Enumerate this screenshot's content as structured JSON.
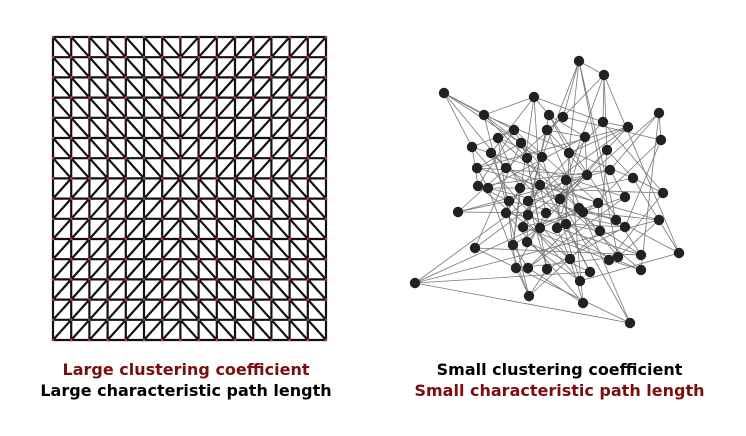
{
  "figure": {
    "panels": [
      {
        "id": "regular-lattice",
        "caption_line_1": "Large clustering coefficient",
        "caption_line_2": "Large characteristic path length"
      },
      {
        "id": "random-network",
        "caption_line_1": "Small clustering coefficient",
        "caption_line_2": "Small characteristic path length"
      }
    ]
  },
  "colors": {
    "highlight": "#7a0e0e",
    "text": "#000000",
    "lattice_edge": "#111111",
    "lattice_node": "#d23030",
    "network_edge": "#777777",
    "network_node": "#222222"
  },
  "lattice": {
    "grid_size": 15
  }
}
